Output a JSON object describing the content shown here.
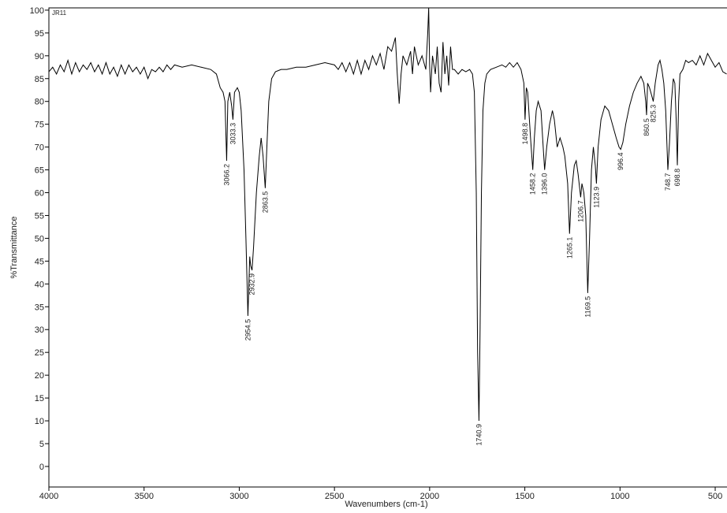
{
  "chart_data": {
    "type": "line",
    "annotation": "JR11",
    "x_label": "Wavenumbers (cm-1)",
    "y_label": "%Transmittance",
    "xlim": [
      4000,
      438
    ],
    "ylim": [
      -4.5,
      100.5
    ],
    "xticks": [
      4000,
      3500,
      3000,
      2500,
      2000,
      1500,
      1000,
      500
    ],
    "yticks": [
      0,
      5,
      10,
      15,
      20,
      25,
      30,
      35,
      40,
      45,
      50,
      55,
      60,
      65,
      70,
      75,
      80,
      85,
      90,
      95,
      100
    ],
    "color": "#000000",
    "x": [
      4000,
      3980,
      3960,
      3940,
      3920,
      3900,
      3880,
      3860,
      3840,
      3820,
      3800,
      3780,
      3760,
      3740,
      3720,
      3700,
      3680,
      3660,
      3640,
      3620,
      3600,
      3580,
      3560,
      3540,
      3520,
      3500,
      3480,
      3460,
      3440,
      3420,
      3400,
      3380,
      3360,
      3340,
      3300,
      3250,
      3200,
      3150,
      3120,
      3100,
      3085,
      3075,
      3066.2,
      3060,
      3050,
      3040,
      3033.3,
      3025,
      3010,
      3000,
      2990,
      2975,
      2965,
      2954.5,
      2945,
      2940,
      2932.9,
      2925,
      2910,
      2895,
      2885,
      2875,
      2863.5,
      2855,
      2845,
      2830,
      2810,
      2780,
      2750,
      2700,
      2650,
      2600,
      2550,
      2500,
      2480,
      2460,
      2440,
      2420,
      2400,
      2380,
      2360,
      2340,
      2320,
      2300,
      2280,
      2260,
      2240,
      2220,
      2200,
      2180,
      2170,
      2160,
      2150,
      2140,
      2120,
      2100,
      2090,
      2080,
      2060,
      2040,
      2020,
      2010,
      2005,
      2000,
      1995,
      1985,
      1970,
      1960,
      1950,
      1940,
      1930,
      1920,
      1910,
      1900,
      1890,
      1880,
      1870,
      1850,
      1830,
      1810,
      1790,
      1775,
      1765,
      1755,
      1748,
      1740.9,
      1735,
      1728,
      1720,
      1710,
      1700,
      1680,
      1650,
      1620,
      1600,
      1580,
      1560,
      1540,
      1520,
      1505,
      1498.8,
      1492,
      1485,
      1470,
      1458.2,
      1450,
      1440,
      1430,
      1415,
      1405,
      1396,
      1385,
      1370,
      1355,
      1345,
      1330,
      1315,
      1300,
      1290,
      1275,
      1265.1,
      1255,
      1240,
      1230,
      1220,
      1206.7,
      1200,
      1190,
      1180,
      1169.5,
      1160,
      1150,
      1140,
      1130,
      1123.9,
      1115,
      1100,
      1080,
      1060,
      1040,
      1020,
      1005,
      996.4,
      985,
      970,
      950,
      930,
      910,
      890,
      875,
      865,
      860.5,
      855,
      845,
      835,
      825.3,
      815,
      800,
      790,
      780,
      770,
      760,
      748.7,
      740,
      730,
      720,
      712,
      705,
      698.8,
      692,
      685,
      670,
      655,
      640,
      620,
      600,
      580,
      560,
      540,
      520,
      500,
      480,
      460,
      440
    ],
    "values": [
      86.5,
      87.5,
      86,
      88,
      86.5,
      89,
      86,
      88.5,
      86.5,
      88,
      87,
      88.5,
      86.5,
      88,
      86,
      88.5,
      86,
      87.5,
      85.5,
      88,
      86,
      88,
      86.5,
      87.5,
      86,
      87.5,
      85,
      87,
      86.5,
      87.5,
      86.5,
      88,
      87,
      88,
      87.5,
      88,
      87.5,
      87,
      86,
      83,
      82,
      80,
      67,
      80,
      82,
      79,
      76,
      82,
      83,
      82,
      78,
      65,
      50,
      33,
      46,
      44,
      43,
      48,
      60,
      68,
      72,
      68,
      61,
      70,
      80,
      85,
      86.5,
      87,
      87,
      87.5,
      87.5,
      88,
      88.5,
      88,
      87,
      88.5,
      86.5,
      88.5,
      86,
      89,
      86,
      89,
      87,
      90,
      88,
      90.5,
      87,
      92,
      91,
      94,
      86,
      79.5,
      86,
      90,
      88,
      91,
      86,
      92,
      88,
      90,
      87,
      95,
      100.5,
      88,
      82,
      90,
      86,
      92,
      84,
      82,
      93,
      86,
      90,
      83.5,
      92,
      87,
      87,
      86,
      87,
      86.5,
      87,
      86,
      82,
      60,
      25,
      10,
      30,
      60,
      78,
      84,
      86,
      87,
      87.5,
      88,
      87.5,
      88.5,
      87.5,
      88.5,
      87,
      84,
      76,
      83,
      82,
      72,
      65,
      72,
      78,
      80,
      78,
      71,
      65,
      70,
      75,
      78,
      76,
      70,
      72,
      70,
      68,
      62,
      51,
      60,
      66,
      67,
      64,
      59,
      62,
      60,
      55,
      38,
      50,
      65,
      70,
      66,
      62,
      70,
      76,
      79,
      78,
      75,
      72,
      70,
      69.5,
      71,
      75,
      79,
      82,
      84,
      85.5,
      84,
      80,
      77,
      84,
      83,
      81.5,
      80,
      84,
      88,
      89,
      87,
      84,
      78,
      65,
      71,
      80,
      85,
      84,
      76,
      66,
      80,
      86,
      87,
      89,
      88.5,
      89,
      88,
      90,
      88,
      90.5,
      89,
      87.5,
      88.5,
      86.5,
      86
    ],
    "peak_labels": [
      3066.2,
      3033.3,
      2954.5,
      2932.9,
      2863.5,
      1740.9,
      1498.8,
      1458.2,
      {
        "value": 1396,
        "label": "1396.0"
      },
      1265.1,
      1206.7,
      1169.5,
      1123.9,
      996.4,
      860.5,
      825.3,
      748.7,
      698.8
    ]
  }
}
